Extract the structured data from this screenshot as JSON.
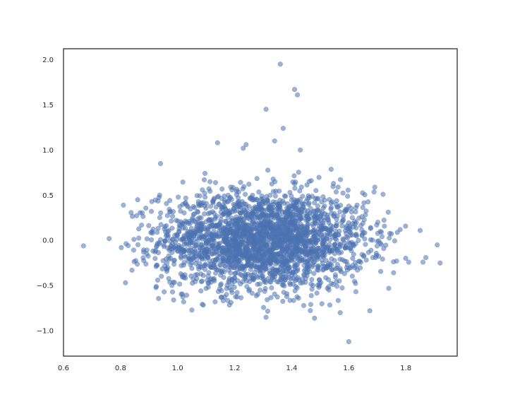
{
  "chart_data": {
    "type": "scatter",
    "title": "",
    "xlabel": "",
    "ylabel": "",
    "xlim": [
      0.6,
      1.98
    ],
    "ylim": [
      -1.28,
      2.12
    ],
    "xticks": [
      "0.6",
      "0.8",
      "1.0",
      "1.2",
      "1.4",
      "1.6",
      "1.8"
    ],
    "yticks": [
      "−1.0",
      "−0.5",
      "0.0",
      "0.5",
      "1.0",
      "1.5",
      "2.0"
    ],
    "grid": false,
    "point_color": "#4c72b0",
    "point_alpha": 0.55,
    "notable_points": [
      {
        "x": 0.67,
        "y": -0.06
      },
      {
        "x": 0.76,
        "y": 0.02
      },
      {
        "x": 0.81,
        "y": 0.39
      },
      {
        "x": 0.84,
        "y": -0.33
      },
      {
        "x": 0.86,
        "y": 0.45
      },
      {
        "x": 0.94,
        "y": 0.85
      },
      {
        "x": 1.05,
        "y": -0.77
      },
      {
        "x": 1.14,
        "y": 1.08
      },
      {
        "x": 1.23,
        "y": 1.02
      },
      {
        "x": 1.24,
        "y": 1.06
      },
      {
        "x": 1.31,
        "y": 1.45
      },
      {
        "x": 1.36,
        "y": 1.95
      },
      {
        "x": 1.37,
        "y": 1.24
      },
      {
        "x": 1.41,
        "y": 1.67
      },
      {
        "x": 1.42,
        "y": 1.61
      },
      {
        "x": 1.43,
        "y": 1.0
      },
      {
        "x": 1.34,
        "y": 1.1
      },
      {
        "x": 1.31,
        "y": -0.85
      },
      {
        "x": 1.48,
        "y": -0.86
      },
      {
        "x": 1.57,
        "y": -0.8
      },
      {
        "x": 1.6,
        "y": -1.12
      },
      {
        "x": 1.72,
        "y": 0.51
      },
      {
        "x": 1.74,
        "y": -0.53
      },
      {
        "x": 1.78,
        "y": 0.12
      },
      {
        "x": 1.81,
        "y": -0.24
      },
      {
        "x": 1.85,
        "y": 0.11
      },
      {
        "x": 1.86,
        "y": -0.24
      },
      {
        "x": 1.87,
        "y": -0.19
      },
      {
        "x": 1.91,
        "y": -0.05
      },
      {
        "x": 1.92,
        "y": -0.25
      }
    ],
    "cluster": {
      "count": 2600,
      "x_mean": 1.3,
      "x_std": 0.18,
      "y_mean": 0.0,
      "y_std": 0.27,
      "seed": 12345
    }
  }
}
